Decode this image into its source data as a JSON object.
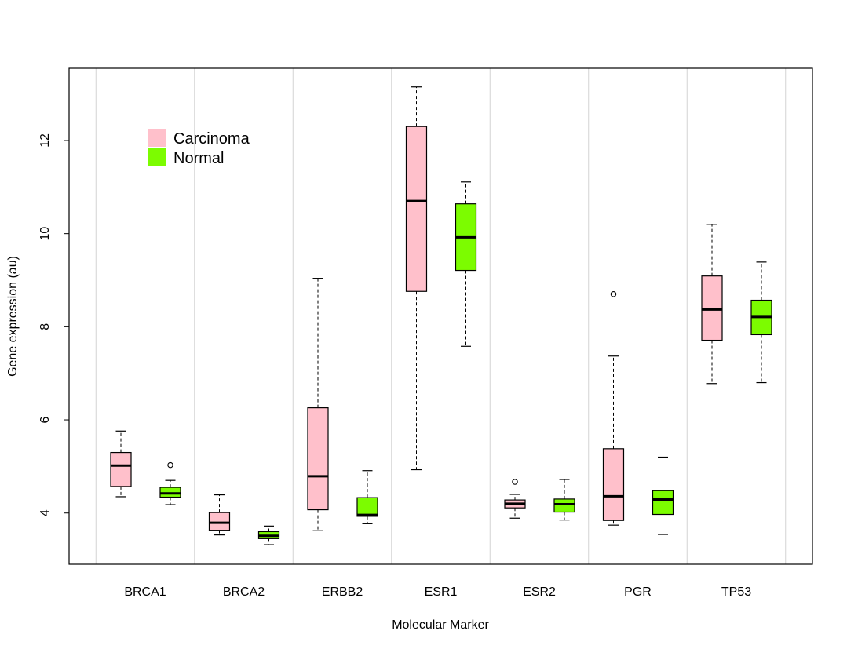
{
  "chart_data": {
    "type": "boxplot",
    "title": "",
    "xlabel": "Molecular Marker",
    "ylabel": "Gene expression (au)",
    "ylim": [
      2.9,
      13.55
    ],
    "yticks": [
      4,
      6,
      8,
      10,
      12
    ],
    "grid": "vertical",
    "legend_position": "top-left",
    "categories": [
      "BRCA1",
      "BRCA2",
      "ERBB2",
      "ESR1",
      "ESR2",
      "PGR",
      "TP53"
    ],
    "series": [
      {
        "name": "Carcinoma",
        "color": "#ffc0cb",
        "boxes": [
          {
            "min": 4.35,
            "q1": 4.57,
            "median": 5.02,
            "q3": 5.3,
            "max": 5.76,
            "outliers": []
          },
          {
            "min": 3.53,
            "q1": 3.63,
            "median": 3.79,
            "q3": 4.01,
            "max": 4.39,
            "outliers": []
          },
          {
            "min": 3.62,
            "q1": 4.07,
            "median": 4.79,
            "q3": 6.26,
            "max": 9.04,
            "outliers": []
          },
          {
            "min": 4.93,
            "q1": 8.76,
            "median": 10.7,
            "q3": 12.3,
            "max": 13.15,
            "outliers": []
          },
          {
            "min": 3.89,
            "q1": 4.11,
            "median": 4.2,
            "q3": 4.28,
            "max": 4.4,
            "outliers": [
              4.67
            ]
          },
          {
            "min": 3.74,
            "q1": 3.84,
            "median": 4.36,
            "q3": 5.38,
            "max": 7.37,
            "outliers": [
              8.7
            ]
          },
          {
            "min": 6.78,
            "q1": 7.71,
            "median": 8.37,
            "q3": 9.09,
            "max": 10.2,
            "outliers": []
          }
        ]
      },
      {
        "name": "Normal",
        "color": "#7cfc00",
        "boxes": [
          {
            "min": 4.18,
            "q1": 4.34,
            "median": 4.42,
            "q3": 4.55,
            "max": 4.7,
            "outliers": [
              5.03
            ]
          },
          {
            "min": 3.32,
            "q1": 3.45,
            "median": 3.51,
            "q3": 3.6,
            "max": 3.72,
            "outliers": []
          },
          {
            "min": 3.77,
            "q1": 3.93,
            "median": 3.96,
            "q3": 4.33,
            "max": 4.91,
            "outliers": []
          },
          {
            "min": 7.58,
            "q1": 9.21,
            "median": 9.92,
            "q3": 10.64,
            "max": 11.11,
            "outliers": []
          },
          {
            "min": 3.85,
            "q1": 4.02,
            "median": 4.19,
            "q3": 4.3,
            "max": 4.72,
            "outliers": []
          },
          {
            "min": 3.54,
            "q1": 3.97,
            "median": 4.29,
            "q3": 4.48,
            "max": 5.2,
            "outliers": []
          },
          {
            "min": 6.8,
            "q1": 7.83,
            "median": 8.21,
            "q3": 8.57,
            "max": 9.39,
            "outliers": []
          }
        ]
      }
    ]
  }
}
